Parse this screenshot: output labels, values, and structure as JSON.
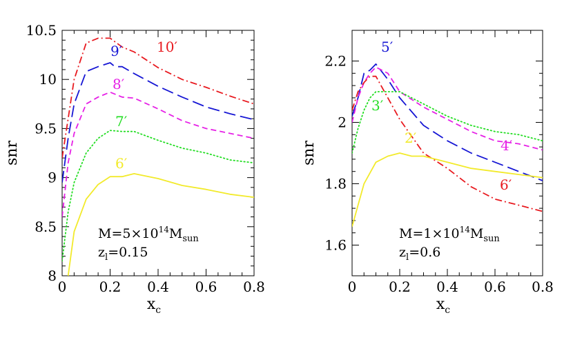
{
  "chart_data": [
    {
      "type": "line",
      "xlabel": "x",
      "xlabel_sub": "c",
      "ylabel": "snr",
      "xlim": [
        0,
        0.8
      ],
      "ylim": [
        8,
        10.5
      ],
      "x_ticks": [
        "0",
        "0.2",
        "0.4",
        "0.6",
        "0.8"
      ],
      "y_ticks": [
        "8",
        "8.5",
        "9",
        "9.5",
        "10",
        "10.5"
      ],
      "annotation": {
        "line1_pre": "M=5×10",
        "line1_sup": "14",
        "line1_post": "M",
        "line1_sub": "sun",
        "line2_pre": "z",
        "line2_sub": "l",
        "line2_post": "=0.15"
      },
      "series": [
        {
          "label": "10′",
          "color": "#e8191f",
          "dash": "dashdot",
          "points": [
            [
              0,
              9.2
            ],
            [
              0.025,
              9.6
            ],
            [
              0.05,
              10.0
            ],
            [
              0.1,
              10.37
            ],
            [
              0.15,
              10.42
            ],
            [
              0.2,
              10.42
            ],
            [
              0.25,
              10.33
            ],
            [
              0.3,
              10.28
            ],
            [
              0.4,
              10.12
            ],
            [
              0.5,
              10.0
            ],
            [
              0.6,
              9.92
            ],
            [
              0.7,
              9.83
            ],
            [
              0.8,
              9.75
            ]
          ]
        },
        {
          "label": "9′",
          "color": "#1616d4",
          "dash": "longdash",
          "points": [
            [
              0,
              8.95
            ],
            [
              0.025,
              9.4
            ],
            [
              0.05,
              9.75
            ],
            [
              0.1,
              10.08
            ],
            [
              0.15,
              10.13
            ],
            [
              0.2,
              10.17
            ],
            [
              0.22,
              10.13
            ],
            [
              0.25,
              10.13
            ],
            [
              0.3,
              10.06
            ],
            [
              0.4,
              9.93
            ],
            [
              0.5,
              9.82
            ],
            [
              0.6,
              9.72
            ],
            [
              0.7,
              9.65
            ],
            [
              0.8,
              9.59
            ]
          ]
        },
        {
          "label": "8′",
          "color": "#e620e6",
          "dash": "dash",
          "points": [
            [
              0,
              8.6
            ],
            [
              0.025,
              9.15
            ],
            [
              0.05,
              9.45
            ],
            [
              0.1,
              9.75
            ],
            [
              0.15,
              9.82
            ],
            [
              0.2,
              9.87
            ],
            [
              0.25,
              9.82
            ],
            [
              0.3,
              9.81
            ],
            [
              0.4,
              9.7
            ],
            [
              0.5,
              9.58
            ],
            [
              0.6,
              9.5
            ],
            [
              0.7,
              9.45
            ],
            [
              0.8,
              9.4
            ]
          ]
        },
        {
          "label": "7′",
          "color": "#22dd22",
          "dash": "dot",
          "points": [
            [
              0,
              8.15
            ],
            [
              0.025,
              8.65
            ],
            [
              0.05,
              8.95
            ],
            [
              0.1,
              9.25
            ],
            [
              0.15,
              9.4
            ],
            [
              0.2,
              9.48
            ],
            [
              0.25,
              9.47
            ],
            [
              0.3,
              9.47
            ],
            [
              0.4,
              9.38
            ],
            [
              0.5,
              9.3
            ],
            [
              0.6,
              9.25
            ],
            [
              0.7,
              9.18
            ],
            [
              0.8,
              9.15
            ]
          ]
        },
        {
          "label": "6′",
          "color": "#f2ea2a",
          "dash": "solid",
          "points": [
            [
              0.025,
              8.0
            ],
            [
              0.05,
              8.45
            ],
            [
              0.1,
              8.78
            ],
            [
              0.15,
              8.93
            ],
            [
              0.2,
              9.01
            ],
            [
              0.25,
              9.01
            ],
            [
              0.3,
              9.04
            ],
            [
              0.4,
              8.99
            ],
            [
              0.5,
              8.92
            ],
            [
              0.6,
              8.88
            ],
            [
              0.7,
              8.83
            ],
            [
              0.8,
              8.8
            ]
          ]
        }
      ]
    },
    {
      "type": "line",
      "xlabel": "x",
      "xlabel_sub": "c",
      "ylabel": "snr",
      "xlim": [
        0,
        0.8
      ],
      "ylim": [
        1.5,
        2.3
      ],
      "x_ticks": [
        "0",
        "0.2",
        "0.4",
        "0.6",
        "0.8"
      ],
      "y_ticks": [
        "1.6",
        "1.8",
        "2",
        "2.2"
      ],
      "annotation": {
        "line1_pre": "M=1×10",
        "line1_sup": "14",
        "line1_post": "M",
        "line1_sub": "sun",
        "line2_pre": "z",
        "line2_sub": "l",
        "line2_post": "=0.6"
      },
      "series": [
        {
          "label": "5′",
          "color": "#1616d4",
          "dash": "longdash",
          "points": [
            [
              0,
              2.02
            ],
            [
              0.025,
              2.08
            ],
            [
              0.05,
              2.16
            ],
            [
              0.075,
              2.17
            ],
            [
              0.1,
              2.19
            ],
            [
              0.15,
              2.14
            ],
            [
              0.2,
              2.08
            ],
            [
              0.3,
              1.99
            ],
            [
              0.4,
              1.94
            ],
            [
              0.5,
              1.9
            ],
            [
              0.6,
              1.87
            ],
            [
              0.7,
              1.84
            ],
            [
              0.8,
              1.81
            ]
          ]
        },
        {
          "label": "4′",
          "color": "#e620e6",
          "dash": "dash",
          "points": [
            [
              0,
              2.0
            ],
            [
              0.025,
              2.08
            ],
            [
              0.05,
              2.13
            ],
            [
              0.075,
              2.16
            ],
            [
              0.1,
              2.18
            ],
            [
              0.15,
              2.16
            ],
            [
              0.2,
              2.1
            ],
            [
              0.3,
              2.05
            ],
            [
              0.4,
              2.01
            ],
            [
              0.5,
              1.97
            ],
            [
              0.6,
              1.94
            ],
            [
              0.7,
              1.93
            ],
            [
              0.8,
              1.91
            ]
          ]
        },
        {
          "label": "3′",
          "color": "#22dd22",
          "dash": "dot",
          "points": [
            [
              0,
              1.9
            ],
            [
              0.025,
              1.98
            ],
            [
              0.05,
              2.04
            ],
            [
              0.075,
              2.08
            ],
            [
              0.1,
              2.1
            ],
            [
              0.15,
              2.1
            ],
            [
              0.2,
              2.1
            ],
            [
              0.3,
              2.06
            ],
            [
              0.4,
              2.02
            ],
            [
              0.5,
              1.99
            ],
            [
              0.6,
              1.97
            ],
            [
              0.7,
              1.96
            ],
            [
              0.8,
              1.94
            ]
          ]
        },
        {
          "label": "6′",
          "color": "#e8191f",
          "dash": "dashdot",
          "points": [
            [
              0,
              2.04
            ],
            [
              0.025,
              2.1
            ],
            [
              0.05,
              2.13
            ],
            [
              0.075,
              2.15
            ],
            [
              0.1,
              2.15
            ],
            [
              0.15,
              2.08
            ],
            [
              0.2,
              2.01
            ],
            [
              0.3,
              1.9
            ],
            [
              0.4,
              1.85
            ],
            [
              0.5,
              1.79
            ],
            [
              0.6,
              1.75
            ],
            [
              0.7,
              1.73
            ],
            [
              0.8,
              1.71
            ]
          ]
        },
        {
          "label": "2′",
          "color": "#f2ea2a",
          "dash": "solid",
          "points": [
            [
              0,
              1.66
            ],
            [
              0.025,
              1.73
            ],
            [
              0.05,
              1.8
            ],
            [
              0.1,
              1.87
            ],
            [
              0.15,
              1.89
            ],
            [
              0.2,
              1.9
            ],
            [
              0.25,
              1.89
            ],
            [
              0.3,
              1.89
            ],
            [
              0.4,
              1.87
            ],
            [
              0.5,
              1.85
            ],
            [
              0.6,
              1.84
            ],
            [
              0.7,
              1.83
            ],
            [
              0.8,
              1.82
            ]
          ]
        }
      ]
    }
  ]
}
